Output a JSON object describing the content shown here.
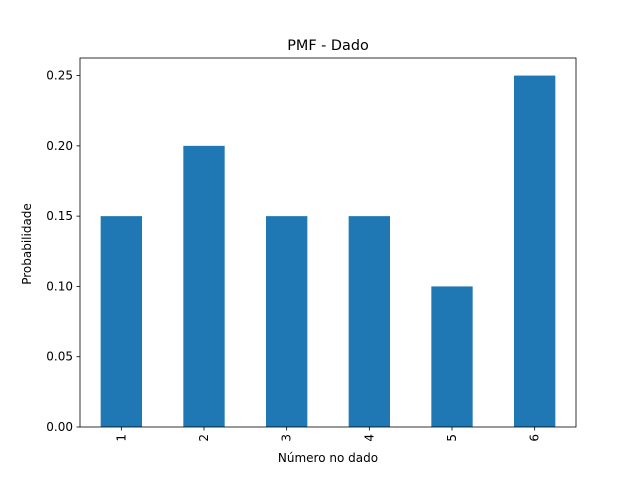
{
  "chart_data": {
    "type": "bar",
    "title": "PMF - Dado",
    "xlabel": "Número no dado",
    "ylabel": "Probabilidade",
    "categories": [
      "1",
      "2",
      "3",
      "4",
      "5",
      "6"
    ],
    "values": [
      0.15,
      0.2,
      0.15,
      0.15,
      0.1,
      0.25
    ],
    "ylim": [
      0,
      0.2625
    ],
    "yticks": [
      "0.00",
      "0.05",
      "0.10",
      "0.15",
      "0.20",
      "0.25"
    ],
    "ytick_values": [
      0,
      0.05,
      0.1,
      0.15,
      0.2,
      0.25
    ],
    "grid": false,
    "legend": "none",
    "bar_color": "#1f77b4"
  }
}
